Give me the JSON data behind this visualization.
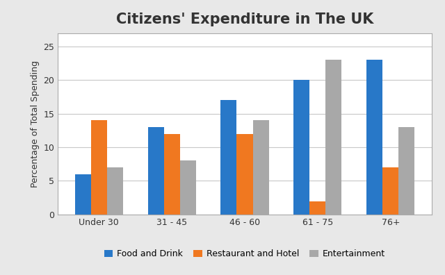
{
  "title": "Citizens' Expenditure in The UK",
  "ylabel": "Percentage of Total Spending",
  "categories": [
    "Under 30",
    "31 - 45",
    "46 - 60",
    "61 - 75",
    "76+"
  ],
  "series": [
    {
      "label": "Food and Drink",
      "color": "#2878C8",
      "values": [
        6,
        13,
        17,
        20,
        23
      ]
    },
    {
      "label": "Restaurant and Hotel",
      "color": "#F07820",
      "values": [
        14,
        12,
        12,
        2,
        7
      ]
    },
    {
      "label": "Entertainment",
      "color": "#A8A8A8",
      "values": [
        7,
        8,
        14,
        23,
        13
      ]
    }
  ],
  "ylim": [
    0,
    27
  ],
  "yticks": [
    0,
    5,
    10,
    15,
    20,
    25
  ],
  "outer_background": "#E8E8E8",
  "inner_background": "#FFFFFF",
  "grid_color": "#C8C8C8",
  "bar_width": 0.22,
  "title_fontsize": 15,
  "axis_label_fontsize": 9,
  "tick_fontsize": 9,
  "legend_fontsize": 9
}
